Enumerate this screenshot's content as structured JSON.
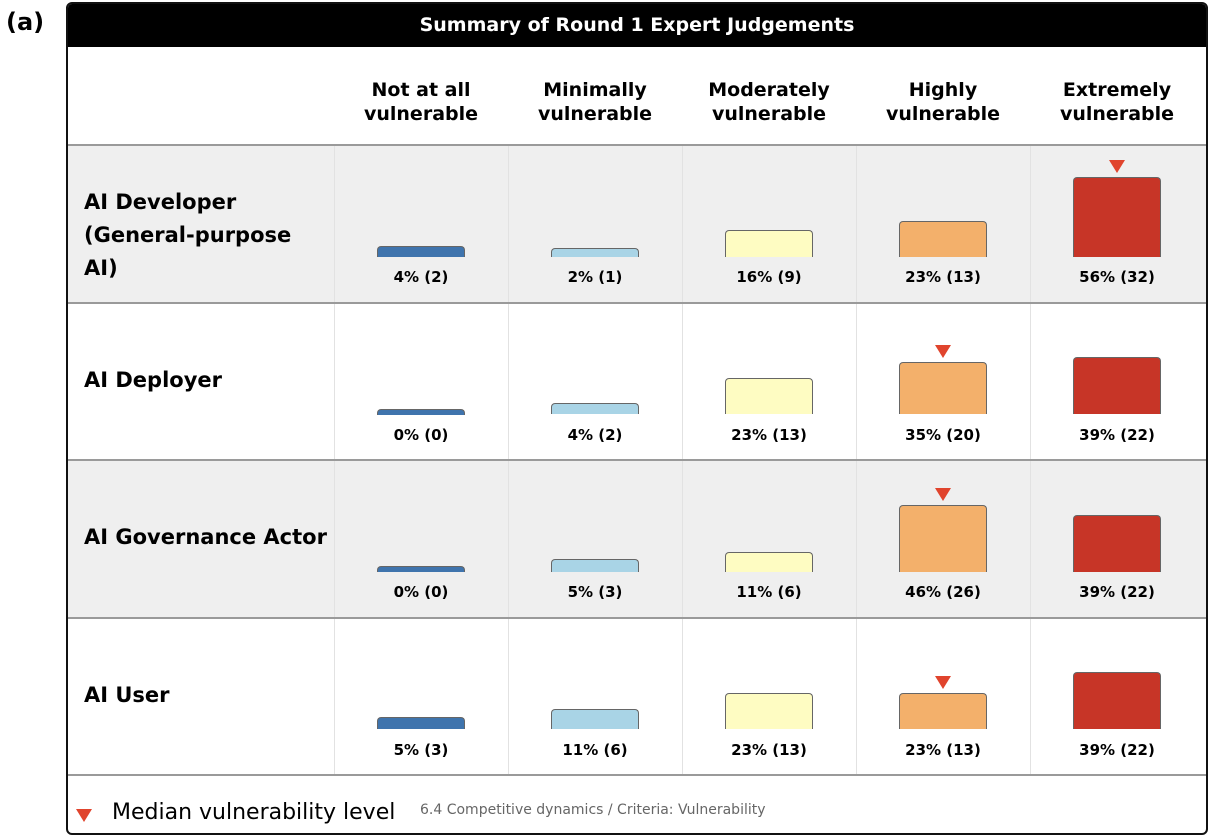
{
  "panel_label": "(a)",
  "chart_data": {
    "type": "bar",
    "title": "Summary of Round 1 Expert Judgements",
    "categories": [
      "Not at all vulnerable",
      "Minimally vulnerable",
      "Moderately vulnerable",
      "Highly vulnerable",
      "Extremely vulnerable"
    ],
    "colors": [
      "#3f74ad",
      "#a9d4e6",
      "#fefcc2",
      "#f3b06b",
      "#c73527"
    ],
    "ylim": [
      0,
      60
    ],
    "series": [
      {
        "name": "AI Developer (General-purpose AI)",
        "values": [
          4,
          2,
          16,
          23,
          56
        ],
        "value_labels": [
          "4% (2)",
          "2% (1)",
          "16% (9)",
          "23% (13)",
          "56% (32)"
        ],
        "median": 4
      },
      {
        "name": "AI Deployer",
        "values": [
          0,
          4,
          23,
          35,
          39
        ],
        "value_labels": [
          "0% (0)",
          "4% (2)",
          "23% (13)",
          "35% (20)",
          "39% (22)"
        ],
        "median": 3
      },
      {
        "name": "AI Governance Actor",
        "values": [
          0,
          5,
          11,
          46,
          39
        ],
        "value_labels": [
          "0% (0)",
          "5% (3)",
          "11% (6)",
          "46% (26)",
          "39% (22)"
        ],
        "median": 3
      },
      {
        "name": "AI User",
        "values": [
          5,
          11,
          23,
          23,
          39
        ],
        "value_labels": [
          "5% (3)",
          "11% (6)",
          "23% (13)",
          "23% (13)",
          "39% (22)"
        ],
        "median": 3
      }
    ],
    "legend": "Median vulnerability level",
    "note": "6.4 Competitive dynamics / Criteria: Vulnerability"
  }
}
